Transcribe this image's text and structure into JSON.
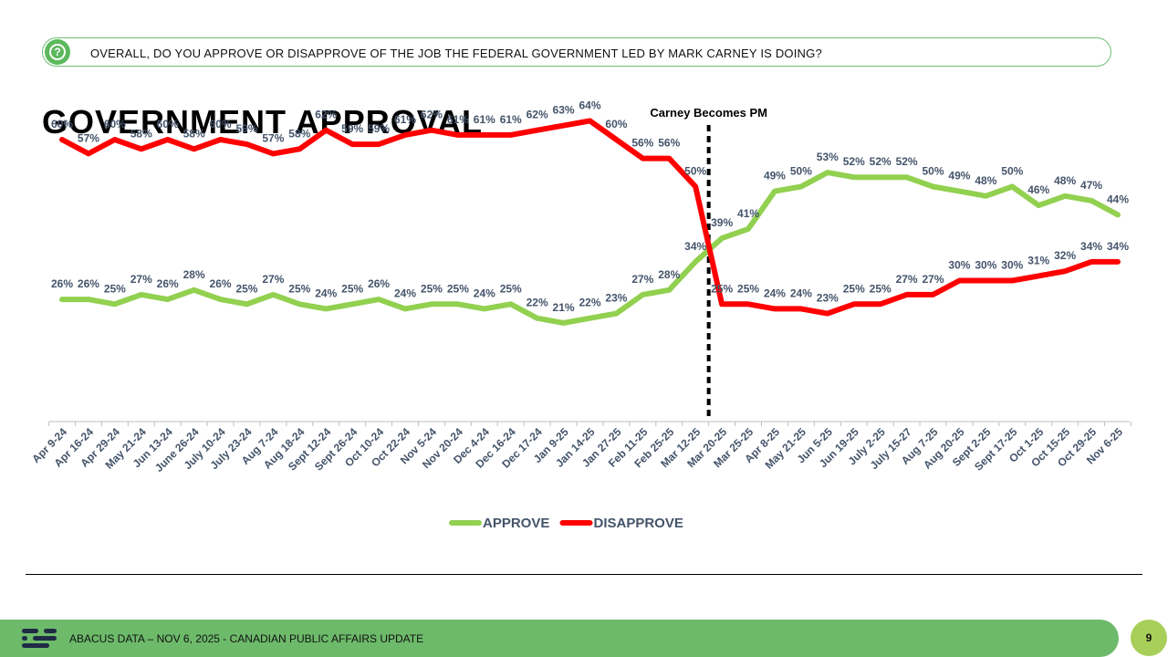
{
  "header": {
    "question_icon": "question-mark-icon",
    "question_glyph": "?",
    "question": "OVERALL, DO YOU APPROVE OR DISAPPROVE OF THE JOB THE FEDERAL GOVERNMENT LED BY MARK CARNEY IS DOING?"
  },
  "title": "GOVERNMENT APPROVAL",
  "chart_data": {
    "type": "line",
    "categories": [
      "Apr 9-24",
      "Apr 16-24",
      "Apr 29-24",
      "May 21-24",
      "Jun 13-24",
      "June 26-24",
      "July 10-24",
      "July 23-24",
      "Aug 7-24",
      "Aug 18-24",
      "Sept 12-24",
      "Sept 26-24",
      "Oct 10-24",
      "Oct 22-24",
      "Nov 5-24",
      "Nov 20-24",
      "Dec 4-24",
      "Dec 16-24",
      "Dec 17-24",
      "Jan 9-25",
      "Jan 14-25",
      "Jan 27-25",
      "Feb 11-25",
      "Feb 25-25",
      "Mar 12-25",
      "Mar 20-25",
      "Mar 25-25",
      "Apr 8-25",
      "May 21-25",
      "Jun 5-25",
      "Jun 19-25",
      "July 2-25",
      "July 15-27",
      "Aug 7-25",
      "Aug 20-25",
      "Sept 2-25",
      "Sept 17-25",
      "Oct 1-25",
      "Oct 15-25",
      "Oct 29-25",
      "Nov 6-25"
    ],
    "series": [
      {
        "name": "APPROVE",
        "color": "#92d050",
        "values": [
          26,
          26,
          25,
          27,
          26,
          28,
          26,
          25,
          27,
          25,
          24,
          25,
          26,
          24,
          25,
          25,
          24,
          25,
          22,
          21,
          22,
          23,
          27,
          28,
          34,
          39,
          41,
          49,
          50,
          53,
          52,
          52,
          52,
          50,
          49,
          48,
          50,
          46,
          48,
          47,
          44
        ],
        "labels": [
          "26%",
          "26%",
          "25%",
          "27%",
          "26%",
          "28%",
          "26%",
          "25%",
          "27%",
          "25%",
          "24%",
          "25%",
          "26%",
          "24%",
          "25%",
          "25%",
          "24%",
          "25%",
          "22%",
          "21%",
          "22%",
          "23%",
          "27%",
          "28%",
          "34%",
          "39%",
          "41%",
          "49%",
          "50%",
          "53%",
          "52%",
          "52%",
          "52%",
          "50%",
          "49%",
          "48%",
          "50%",
          "46%",
          "48%",
          "47%",
          "44%"
        ]
      },
      {
        "name": "DISAPPROVE",
        "color": "#ff0000",
        "values": [
          60,
          57,
          60,
          58,
          60,
          58,
          60,
          59,
          57,
          58,
          62,
          59,
          59,
          61,
          62,
          61,
          61,
          61,
          62,
          63,
          64,
          60,
          56,
          56,
          50,
          25,
          25,
          24,
          24,
          23,
          25,
          25,
          27,
          27,
          30,
          30,
          30,
          31,
          32,
          34,
          34
        ],
        "labels": [
          "60%",
          "57%",
          "60%",
          "58%",
          "60%",
          "58%",
          "60%",
          "59%",
          "57%",
          "58%",
          "62%",
          "59%",
          "59%",
          "61%",
          "62%",
          "61%",
          "61%",
          "61%",
          "62%",
          "63%",
          "64%",
          "60%",
          "56%",
          "56%",
          "50%",
          "25%",
          "25%",
          "24%",
          "24%",
          "23%",
          "25%",
          "25%",
          "27%",
          "27%",
          "30%",
          "30%",
          "30%",
          "31%",
          "32%",
          "34%",
          "34%"
        ]
      }
    ],
    "ylim": [
      0,
      80
    ],
    "annotation": {
      "text": "Carney Becomes PM",
      "category": "Mar 20-25"
    },
    "legend_position": "bottom"
  },
  "footer": {
    "text": "ABACUS DATA – NOV 6, 2025 - CANADIAN PUBLIC AFFAIRS UPDATE",
    "page": "9"
  }
}
